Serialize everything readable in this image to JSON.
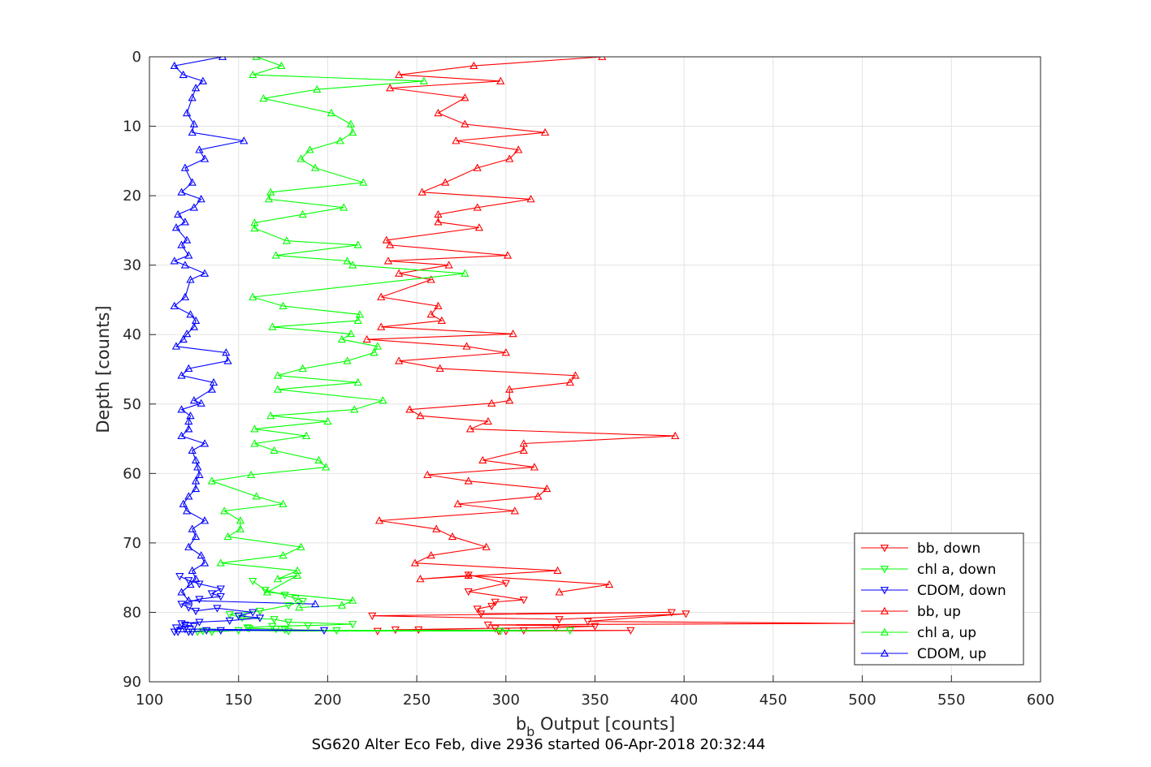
{
  "chart_data": {
    "type": "line",
    "title": "SG620 Alter Eco Feb, dive 2936 started 06-Apr-2018 20:32:44",
    "xlabel_main": "b",
    "xlabel_sub": "b",
    "xlabel_rest": " Output [counts]",
    "ylabel": "Depth [counts]",
    "xlim": [
      100,
      600
    ],
    "ylim": [
      0,
      90
    ],
    "y_reversed": true,
    "grid": true,
    "legend_position": "bottom-right",
    "xticks": [
      "100",
      "150",
      "200",
      "250",
      "300",
      "350",
      "400",
      "450",
      "500",
      "550",
      "600"
    ],
    "yticks": [
      "0",
      "10",
      "20",
      "30",
      "40",
      "50",
      "60",
      "70",
      "80",
      "90"
    ],
    "series": [
      {
        "name": "bb, down",
        "color": "#ff0000",
        "marker": "triangle-down",
        "x": [
          279,
          300,
          279,
          310,
          294,
          292,
          284,
          286,
          393,
          225,
          330,
          401,
          346,
          497,
          290,
          350,
          328,
          294,
          238,
          251,
          310,
          370,
          296,
          300,
          228
        ],
        "y": [
          74.6,
          75.8,
          77.0,
          78.2,
          78.5,
          79.1,
          79.5,
          80.2,
          80.0,
          80.5,
          81.0,
          80.2,
          81.3,
          81.6,
          81.8,
          82.0,
          82.2,
          82.3,
          82.5,
          82.5,
          82.6,
          82.6,
          82.7,
          82.7,
          82.7
        ]
      },
      {
        "name": "chl a, down",
        "color": "#00ff00",
        "marker": "triangle-down",
        "x": [
          158,
          165,
          176,
          182,
          186,
          178,
          162,
          145,
          152,
          170,
          178,
          214,
          189,
          169,
          155,
          156,
          171,
          176,
          205,
          336,
          297,
          178,
          150,
          135,
          122,
          130,
          127
        ],
        "y": [
          75.5,
          76.8,
          77.5,
          78.0,
          78.4,
          79.0,
          79.8,
          80.3,
          80.8,
          81.0,
          81.4,
          81.7,
          81.9,
          82.0,
          82.2,
          82.3,
          82.4,
          82.5,
          82.6,
          82.6,
          82.7,
          82.7,
          82.6,
          82.8,
          82.8,
          82.7,
          82.8
        ]
      },
      {
        "name": "CDOM, down",
        "color": "#0000ff",
        "marker": "triangle-down",
        "x": [
          117,
          122,
          128,
          140,
          135,
          140,
          128,
          118,
          122,
          126,
          138,
          158,
          150,
          162,
          145,
          128,
          118,
          120,
          125,
          115,
          120,
          198,
          140,
          132,
          124,
          122,
          116,
          114
        ],
        "y": [
          74.8,
          75.4,
          75.9,
          76.6,
          77.3,
          77.7,
          78.1,
          78.8,
          79.3,
          79.8,
          79.4,
          80.0,
          80.5,
          80.8,
          81.2,
          81.4,
          81.6,
          81.8,
          82.0,
          82.2,
          82.4,
          82.6,
          82.6,
          82.6,
          82.8,
          82.8,
          82.8,
          82.8
        ]
      },
      {
        "name": "bb, up",
        "color": "#ff0000",
        "marker": "triangle-up",
        "x": [
          354,
          282,
          240,
          297,
          235,
          277,
          262,
          277,
          322,
          272,
          307,
          302,
          284,
          266,
          253,
          314,
          284,
          262,
          262,
          285,
          233,
          235,
          301,
          234,
          268,
          240,
          258,
          230,
          262,
          258,
          264,
          230,
          304,
          222,
          278,
          300,
          240,
          263,
          339,
          336,
          302,
          302,
          292,
          246,
          252,
          290,
          280,
          395,
          310,
          310,
          287,
          316,
          256,
          279,
          323,
          318,
          273,
          305,
          229,
          261,
          270,
          289,
          258,
          249,
          329,
          252,
          279,
          358,
          330
        ],
        "y": [
          0.0,
          1.3,
          2.6,
          3.5,
          4.5,
          5.9,
          8.1,
          9.7,
          10.9,
          12.1,
          13.4,
          14.7,
          16.0,
          18.1,
          19.5,
          20.5,
          21.7,
          22.7,
          23.8,
          24.6,
          26.4,
          27.1,
          28.6,
          29.4,
          30.0,
          31.2,
          32.1,
          34.6,
          35.9,
          37.1,
          38.0,
          38.9,
          39.9,
          40.7,
          41.7,
          42.6,
          43.8,
          44.9,
          45.9,
          46.9,
          47.9,
          49.5,
          49.9,
          50.8,
          51.7,
          52.5,
          53.6,
          54.6,
          55.7,
          56.7,
          58.1,
          59.1,
          60.2,
          61.1,
          62.2,
          63.3,
          64.4,
          65.4,
          66.8,
          68.0,
          69.1,
          70.6,
          71.8,
          72.9,
          74.0,
          75.2,
          74.7,
          76.0,
          77.1
        ]
      },
      {
        "name": "chl a, up",
        "color": "#00ff00",
        "marker": "triangle-up",
        "x": [
          160,
          174,
          158,
          254,
          194,
          164,
          202,
          213,
          214,
          207,
          190,
          185,
          193,
          220,
          168,
          167,
          209,
          186,
          159,
          159,
          177,
          217,
          171,
          211,
          214,
          277,
          158,
          175,
          218,
          217,
          169,
          213,
          208,
          228,
          226,
          211,
          186,
          172,
          217,
          172,
          231,
          215,
          168,
          200,
          159,
          188,
          159,
          170,
          195,
          199,
          157,
          135,
          160,
          175,
          142,
          151,
          151,
          144,
          185,
          175,
          140,
          183,
          172,
          183,
          166,
          214,
          208,
          184
        ],
        "y": [
          0.0,
          1.3,
          2.6,
          3.5,
          4.7,
          6.0,
          8.1,
          9.7,
          10.9,
          12.1,
          13.4,
          14.7,
          16.0,
          18.1,
          19.5,
          20.5,
          21.7,
          22.7,
          23.9,
          24.7,
          26.5,
          27.1,
          28.6,
          29.4,
          30.0,
          31.2,
          34.6,
          35.9,
          37.1,
          38.0,
          38.9,
          39.9,
          40.7,
          41.7,
          42.6,
          43.8,
          44.9,
          45.9,
          46.9,
          47.9,
          49.5,
          50.8,
          51.7,
          52.5,
          53.6,
          54.6,
          55.7,
          56.7,
          58.1,
          59.1,
          60.2,
          61.1,
          63.3,
          64.4,
          65.4,
          66.8,
          68.0,
          69.1,
          70.6,
          71.8,
          72.9,
          74.0,
          75.2,
          74.7,
          77.1,
          78.3,
          79.0,
          79.3
        ]
      },
      {
        "name": "CDOM, up",
        "color": "#0000ff",
        "marker": "triangle-up",
        "x": [
          141,
          114,
          119,
          130,
          126,
          124,
          121,
          125,
          124,
          153,
          128,
          131,
          120,
          124,
          118,
          129,
          125,
          116,
          120,
          115,
          121,
          118,
          122,
          114,
          120,
          131,
          123,
          120,
          114,
          123,
          126,
          125,
          121,
          119,
          115,
          143,
          144,
          122,
          118,
          136,
          135,
          125,
          129,
          118,
          123,
          122,
          122,
          118,
          131,
          124,
          126,
          127,
          128,
          126,
          126,
          122,
          119,
          121,
          131,
          124,
          126,
          122,
          129,
          131,
          124,
          126,
          123,
          118,
          122,
          193
        ],
        "y": [
          0.0,
          1.3,
          2.6,
          3.5,
          4.5,
          5.9,
          8.1,
          9.7,
          10.9,
          12.1,
          13.4,
          14.7,
          16.0,
          18.1,
          19.5,
          20.5,
          21.7,
          22.7,
          23.8,
          24.6,
          26.4,
          27.1,
          28.6,
          29.4,
          30.0,
          31.2,
          32.1,
          34.6,
          35.9,
          37.1,
          38.0,
          38.9,
          39.9,
          40.7,
          41.7,
          42.6,
          43.8,
          44.9,
          45.9,
          46.9,
          47.9,
          49.5,
          49.9,
          50.8,
          51.7,
          52.5,
          53.6,
          54.6,
          55.7,
          56.7,
          58.1,
          59.1,
          60.2,
          61.1,
          62.2,
          63.3,
          64.4,
          65.4,
          66.8,
          68.0,
          69.1,
          70.6,
          71.8,
          72.9,
          74.0,
          75.2,
          76.0,
          77.1,
          78.3,
          78.8
        ]
      }
    ]
  }
}
